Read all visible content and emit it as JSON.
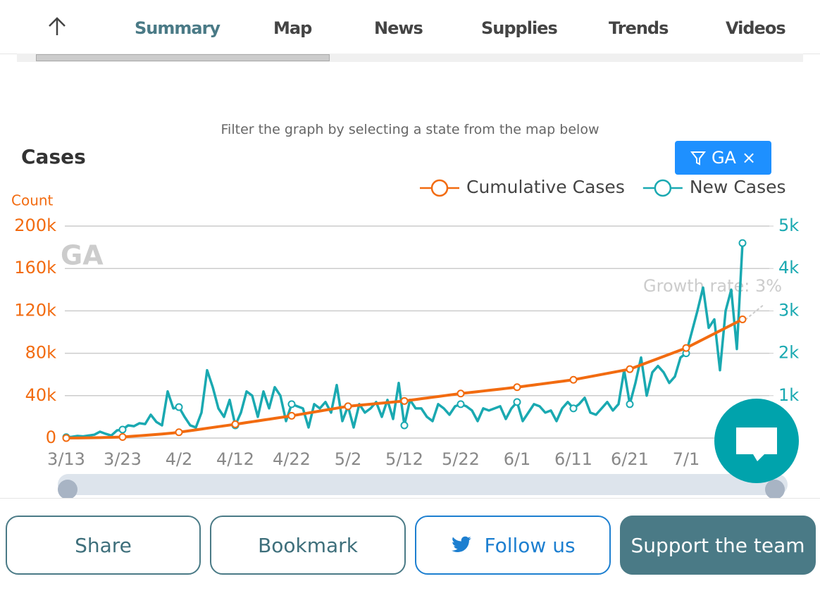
{
  "nav": {
    "tabs": [
      "Summary",
      "Map",
      "News",
      "Supplies",
      "Trends",
      "Videos"
    ]
  },
  "filter_hint": "Filter the graph by selecting a state from the map below",
  "filter_badge": "GA",
  "buttons": [
    "Share",
    "Bookmark",
    "Follow us",
    "Support the team"
  ],
  "chart_data": {
    "type": "line",
    "title": "Cases",
    "y_label": "Count",
    "watermark": "GA",
    "annotation": "Growth rate: 3%",
    "categories": [
      "3/13",
      null,
      null,
      null,
      null,
      null,
      null,
      null,
      null,
      null,
      "3/23",
      null,
      null,
      null,
      null,
      null,
      null,
      null,
      null,
      null,
      "4/2",
      null,
      null,
      null,
      null,
      null,
      null,
      null,
      null,
      null,
      "4/12",
      null,
      null,
      null,
      null,
      null,
      null,
      null,
      null,
      null,
      "4/22",
      null,
      null,
      null,
      null,
      null,
      null,
      null,
      null,
      null,
      "5/2",
      null,
      null,
      null,
      null,
      null,
      null,
      null,
      null,
      null,
      "5/12",
      null,
      null,
      null,
      null,
      null,
      null,
      null,
      null,
      null,
      "5/22",
      null,
      null,
      null,
      null,
      null,
      null,
      null,
      null,
      null,
      "6/1",
      null,
      null,
      null,
      null,
      null,
      null,
      null,
      null,
      null,
      "6/11",
      null,
      null,
      null,
      null,
      null,
      null,
      null,
      null,
      null,
      "6/21",
      null,
      null,
      null,
      null,
      null,
      null,
      null,
      null,
      null,
      "7/1",
      null,
      null,
      null,
      null,
      null,
      null,
      null,
      null,
      null,
      null
    ],
    "series": [
      {
        "name": "Cumulative Cases",
        "color": "#f26b10",
        "axis": "y",
        "values": [
          0,
          50,
          100,
          150,
          250,
          350,
          450,
          550,
          700,
          850,
          1000,
          1400,
          1800,
          2200,
          2600,
          3000,
          3400,
          3800,
          4300,
          4800,
          5500,
          6250,
          7000,
          7750,
          8500,
          9250,
          10000,
          10750,
          11500,
          12250,
          13000,
          13800,
          14600,
          15400,
          16200,
          17000,
          17800,
          18600,
          19400,
          20200,
          21000,
          21900,
          22800,
          23700,
          24600,
          25500,
          26400,
          27300,
          28200,
          29100,
          30000,
          30500,
          31000,
          31500,
          32000,
          32500,
          33000,
          33500,
          34000,
          34500,
          35000,
          35700,
          36400,
          37100,
          37800,
          38500,
          39200,
          39900,
          40600,
          41300,
          42000,
          42600,
          43200,
          43800,
          44400,
          45000,
          45600,
          46200,
          46800,
          47400,
          48000,
          48700,
          49400,
          50100,
          50800,
          51500,
          52200,
          52900,
          53600,
          54300,
          55000,
          56000,
          57000,
          58000,
          59000,
          60000,
          61000,
          62000,
          63000,
          64000,
          65000,
          67000,
          69000,
          71000,
          73000,
          75000,
          77000,
          79000,
          81000,
          83000,
          85000,
          87700,
          90400,
          93100,
          95800,
          98500,
          101200,
          103900,
          106600,
          109300,
          112000
        ]
      },
      {
        "name": "New Cases",
        "color": "#1aa9b1",
        "axis": "y2",
        "values": [
          20,
          30,
          50,
          40,
          60,
          80,
          150,
          100,
          60,
          180,
          200,
          300,
          280,
          350,
          330,
          550,
          380,
          300,
          1100,
          700,
          730,
          500,
          300,
          250,
          600,
          1600,
          1200,
          700,
          500,
          900,
          300,
          600,
          1100,
          1000,
          500,
          1100,
          700,
          1200,
          1000,
          400,
          800,
          750,
          700,
          250,
          800,
          700,
          850,
          600,
          1250,
          400,
          750,
          250,
          800,
          600,
          700,
          850,
          500,
          900,
          450,
          1300,
          300,
          900,
          700,
          700,
          500,
          400,
          800,
          700,
          550,
          750,
          800,
          750,
          650,
          400,
          700,
          650,
          700,
          750,
          450,
          700,
          850,
          400,
          600,
          800,
          750,
          600,
          650,
          400,
          700,
          850,
          700,
          800,
          950,
          600,
          550,
          700,
          850,
          650,
          800,
          1600,
          800,
          1300,
          1900,
          1000,
          1550,
          1700,
          1550,
          1300,
          1450,
          1900,
          2000,
          2500,
          3000,
          3550,
          2600,
          2800,
          1600,
          3000,
          3500,
          2100,
          4600
        ]
      }
    ],
    "ylim": [
      0,
      200000
    ],
    "yticks": [
      0,
      {
        "value": 40000,
        "label": "40k"
      },
      {
        "value": 80000,
        "label": "80k"
      },
      {
        "value": 120000,
        "label": "120k"
      },
      {
        "value": 160000,
        "label": "160k"
      },
      {
        "value": 200000,
        "label": "200k"
      }
    ],
    "y2lim": [
      0,
      5000
    ],
    "y2ticks": [
      {
        "value": 1000,
        "label": "1k"
      },
      {
        "value": 2000,
        "label": "2k"
      },
      {
        "value": 3000,
        "label": "3k"
      },
      {
        "value": 4000,
        "label": "4k"
      },
      {
        "value": 5000,
        "label": "5k"
      }
    ],
    "grid": true
  }
}
